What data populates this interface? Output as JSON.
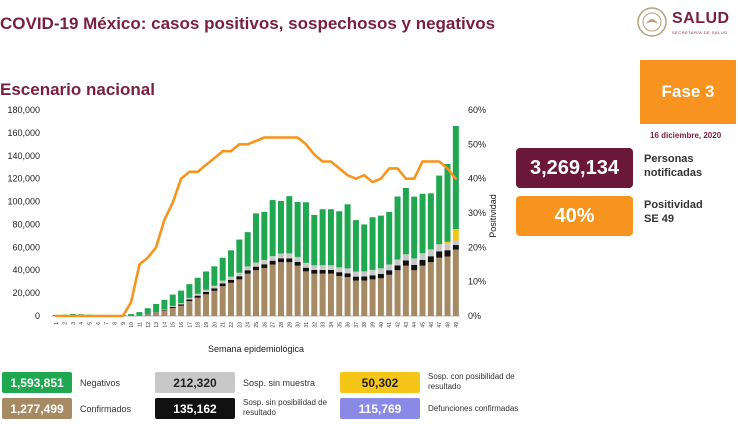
{
  "header": {
    "title": "COVID-19 México: casos positivos, sospechosos y negativos",
    "logo_text": "SALUD",
    "logo_sub": "SECRETARÍA DE SALUD"
  },
  "subtitle": "Escenario nacional",
  "phase": "Fase 3",
  "date": "16 diciembre, 2020",
  "kpis": {
    "notified_value": "3,269,134",
    "notified_label_1": "Personas",
    "notified_label_2": "notificadas",
    "positivity_value": "40%",
    "positivity_label_1": "Positividad",
    "positivity_label_2": "SE 49"
  },
  "legend": {
    "negativos_value": "1,593,851",
    "negativos_label": "Negativos",
    "confirmados_value": "1,277,499",
    "confirmados_label": "Confirmados",
    "sosp_sin_muestra_value": "212,320",
    "sosp_sin_muestra_label": "Sosp. sin muestra",
    "sosp_sin_posibilidad_value": "135,162",
    "sosp_sin_posibilidad_label_1": "Sosp. sin posibilidad de",
    "sosp_sin_posibilidad_label_2": "resultado",
    "sosp_con_posibilidad_value": "50,302",
    "sosp_con_posibilidad_label_1": "Sosp. con posibilidad de",
    "sosp_con_posibilidad_label_2": "resultado",
    "defunciones_value": "115,769",
    "defunciones_label": "Defunciones confirmadas"
  },
  "colors": {
    "negativos": "#1fa84f",
    "confirmados": "#a68a64",
    "sosp_sin_muestra": "#c8c8c8",
    "sosp_sin_posibilidad": "#111111",
    "sosp_con_posibilidad": "#f5c518",
    "defunciones": "#8a8ae6",
    "positividad": "#f7941d",
    "brand": "#7a1f3d",
    "kpi_dark": "#6b1838"
  },
  "chart_data": {
    "type": "bar",
    "stacked": true,
    "xlabel": "Semana epidemiológica",
    "ylabel_right": "Positividad",
    "categories": [
      "1",
      "2",
      "3",
      "4",
      "5",
      "6",
      "7",
      "8",
      "9",
      "10",
      "11",
      "12",
      "13",
      "14",
      "15",
      "16",
      "17",
      "18",
      "19",
      "20",
      "21",
      "22",
      "23",
      "24",
      "25",
      "26",
      "27",
      "28",
      "29",
      "30",
      "31",
      "32",
      "33",
      "34",
      "35",
      "36",
      "37",
      "38",
      "39",
      "40",
      "41",
      "42",
      "43",
      "44",
      "45",
      "46",
      "47",
      "48",
      "49"
    ],
    "ylim": [
      0,
      180000
    ],
    "yticks": [
      0,
      20000,
      40000,
      60000,
      80000,
      100000,
      120000,
      140000,
      160000,
      180000
    ],
    "ytick_labels": [
      "0",
      "20,000",
      "40,000",
      "60,000",
      "80,000",
      "100,000",
      "120,000",
      "140,000",
      "160,000",
      "180,000"
    ],
    "y2lim": [
      0,
      60
    ],
    "y2ticks": [
      0,
      10,
      20,
      30,
      40,
      50,
      60
    ],
    "y2tick_labels": [
      "0%",
      "10%",
      "20%",
      "30%",
      "40%",
      "50%",
      "60%"
    ],
    "series": [
      {
        "name": "Confirmados",
        "values": [
          0,
          0,
          0,
          0,
          0,
          0,
          0,
          0,
          0,
          100,
          400,
          1500,
          2800,
          4500,
          7000,
          9000,
          13000,
          16000,
          19000,
          22000,
          26000,
          29000,
          32000,
          37000,
          40000,
          42000,
          45000,
          47000,
          47000,
          44000,
          39000,
          37000,
          37000,
          37000,
          35000,
          34000,
          31000,
          31000,
          32000,
          33000,
          36000,
          40000,
          44000,
          40000,
          44000,
          47000,
          51000,
          52000,
          58000
        ]
      },
      {
        "name": "Sosp. sin posibilidad de resultado",
        "values": [
          0,
          0,
          0,
          0,
          0,
          0,
          0,
          0,
          0,
          0,
          0,
          200,
          400,
          600,
          900,
          1200,
          1500,
          1800,
          2000,
          2200,
          2400,
          2600,
          2800,
          3000,
          3100,
          3200,
          3300,
          3400,
          3400,
          3300,
          3200,
          3200,
          3200,
          3200,
          3300,
          3300,
          3400,
          3500,
          3600,
          3800,
          4000,
          4200,
          4500,
          4700,
          5000,
          5200,
          5500,
          5500,
          4000
        ]
      },
      {
        "name": "Sosp. sin muestra",
        "values": [
          0,
          0,
          0,
          0,
          0,
          0,
          0,
          0,
          0,
          0,
          0,
          100,
          300,
          500,
          800,
          1000,
          1300,
          1600,
          1900,
          2200,
          2500,
          2800,
          3000,
          3300,
          3600,
          3800,
          4000,
          4200,
          4300,
          4300,
          4200,
          4100,
          4100,
          4100,
          4200,
          4300,
          4400,
          4500,
          4700,
          4900,
          5000,
          5200,
          5400,
          5600,
          5800,
          6000,
          6200,
          6300,
          4000
        ]
      },
      {
        "name": "Sosp. con posibilidad de resultado",
        "values": [
          0,
          0,
          0,
          0,
          0,
          0,
          0,
          0,
          0,
          0,
          0,
          0,
          0,
          0,
          0,
          0,
          0,
          0,
          0,
          0,
          0,
          0,
          0,
          0,
          0,
          0,
          0,
          0,
          0,
          0,
          0,
          0,
          0,
          0,
          0,
          0,
          0,
          0,
          0,
          0,
          0,
          0,
          0,
          0,
          0,
          0,
          0,
          1000,
          10000
        ]
      },
      {
        "name": "Negativos",
        "values": [
          1000,
          1200,
          1800,
          1500,
          1200,
          1000,
          900,
          800,
          800,
          1600,
          3000,
          5000,
          7000,
          8500,
          10000,
          11000,
          12000,
          14000,
          16000,
          17000,
          20000,
          23000,
          29000,
          30000,
          43000,
          42000,
          49000,
          46000,
          50000,
          48000,
          53000,
          44000,
          49000,
          49000,
          49000,
          56000,
          45000,
          41000,
          46000,
          46000,
          46000,
          55000,
          58000,
          54000,
          52000,
          49000,
          60000,
          68000,
          90000
        ]
      },
      {
        "name": "Positividad",
        "axis": "right",
        "type": "line",
        "values": [
          0,
          0,
          0,
          0,
          0,
          0,
          0,
          0,
          0,
          4,
          15,
          17,
          20,
          28,
          33,
          40,
          42,
          42,
          44,
          46,
          48,
          48,
          50,
          50,
          51,
          52,
          52,
          52,
          52,
          52,
          50,
          47,
          45,
          45,
          43,
          41,
          40,
          41,
          39,
          40,
          43,
          43,
          40,
          40,
          45,
          45,
          45,
          43,
          40
        ]
      }
    ]
  }
}
